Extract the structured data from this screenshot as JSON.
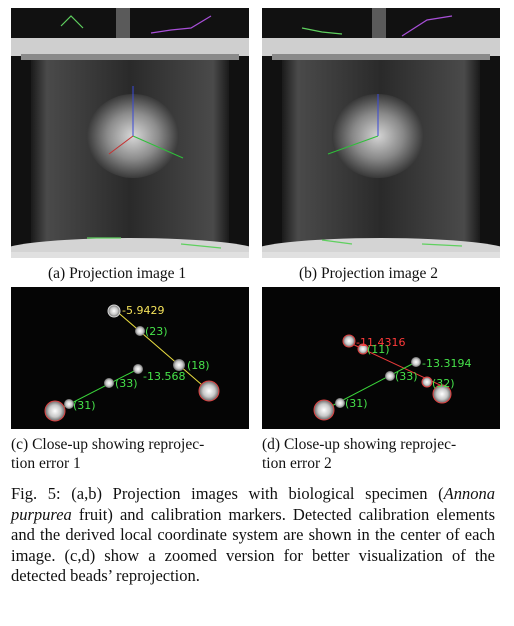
{
  "figure": {
    "subcaptions": {
      "a": "(a) Projection image 1",
      "b": "(b) Projection image 2",
      "c_line1": "(c) Close-up showing reprojec-",
      "c_line2": "tion error 1",
      "d_line1": "(d) Close-up showing reprojec-",
      "d_line2": "tion error 2"
    },
    "closeup_c": {
      "error_top": "-5.9429",
      "bead_23": "(23)",
      "bead_18": "(18)",
      "bead_33": "(33)",
      "error_mid": "-13.568",
      "bead_31": "(31)"
    },
    "closeup_d": {
      "error_red": "-11.4316",
      "bead_11": "(11)",
      "error_green": "-13.3194",
      "bead_33": "(33)",
      "bead_32": "(32)",
      "bead_31": "(31)"
    },
    "caption": {
      "part1": "Fig. 5: (a,b) Projection images with biological specimen (",
      "species": "Annona purpurea",
      "part2": " fruit) and calibration markers. Detected calibration elements and the derived local coordinate system are shown in the center of each image. (c,d) show a zoomed version for better visualization of the detected beads’ reprojection."
    }
  }
}
